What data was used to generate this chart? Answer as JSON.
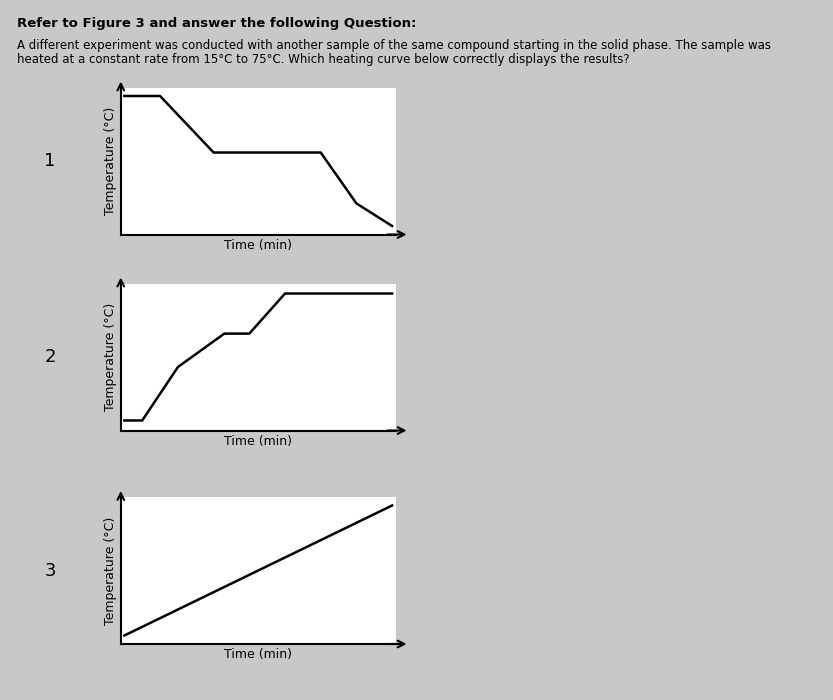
{
  "title_line1": "Refer to Figure 3 and answer the following Question:",
  "subtitle_line": "A different experiment was conducted with another sample of the same compound starting in the solid phase. The sample was\nheated at a constant rate from 15°C to 75°C. Which heating curve below correctly displays the results?",
  "background_color": "#c8c8c8",
  "plot_bg_color": "#ffffff",
  "subplots": [
    {
      "label": "1",
      "x": [
        0,
        1.0,
        2.5,
        5.5,
        6.5,
        7.5
      ],
      "y": [
        4.8,
        4.8,
        2.8,
        2.8,
        1.0,
        0.2
      ]
    },
    {
      "label": "2",
      "x": [
        0,
        0.5,
        1.5,
        2.8,
        3.5,
        4.5,
        7.5
      ],
      "y": [
        0.2,
        0.2,
        1.8,
        2.8,
        2.8,
        4.0,
        4.0
      ]
    },
    {
      "label": "3",
      "x": [
        0,
        7.5
      ],
      "y": [
        0.2,
        4.8
      ]
    }
  ],
  "xlabel": "Time (min)",
  "ylabel": "Temperature (°C)",
  "line_color": "#000000",
  "line_width": 1.8,
  "axis_color": "#000000",
  "title_fontsize": 9.5,
  "subtitle_fontsize": 8.5,
  "label_fontsize": 13,
  "axis_label_fontsize": 9
}
